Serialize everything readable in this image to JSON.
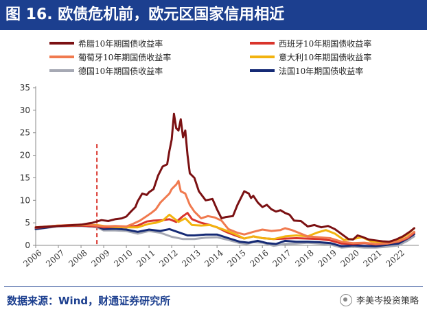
{
  "header": {
    "title": "图 16. 欧债危机前，欧元区国家信用相近"
  },
  "footer": {
    "source": "数据来源：Wind，财通证券研究所",
    "brand": "李美岑投资策略"
  },
  "chart_data": {
    "type": "line",
    "title": "图 16. 欧债危机前，欧元区国家信用相近",
    "xlabel": "",
    "ylabel": "",
    "xlim": [
      2006,
      2022.9
    ],
    "ylim": [
      0,
      35
    ],
    "yticks": [
      0,
      5,
      10,
      15,
      20,
      25,
      30,
      35
    ],
    "xticks": [
      "2006",
      "2007",
      "2008",
      "2009",
      "2010",
      "2011",
      "2012",
      "2013",
      "2014",
      "2015",
      "2016",
      "2017",
      "2018",
      "2019",
      "2020",
      "2021",
      "2022"
    ],
    "grid": false,
    "legend_position": "top",
    "annotations": [
      {
        "type": "vline",
        "x": 2008.7,
        "style": "dashed",
        "color": "#d9342b"
      }
    ],
    "series": [
      {
        "name": "希腊10年期国债收益率",
        "color": "#7b1113",
        "x": [
          2006,
          2007,
          2008,
          2008.5,
          2008.9,
          2009.2,
          2009.5,
          2009.8,
          2010.0,
          2010.2,
          2010.4,
          2010.5,
          2010.7,
          2010.9,
          2011.0,
          2011.2,
          2011.4,
          2011.6,
          2011.8,
          2011.9,
          2012.0,
          2012.1,
          2012.2,
          2012.3,
          2012.4,
          2012.5,
          2012.6,
          2012.7,
          2012.8,
          2013.0,
          2013.2,
          2013.5,
          2013.8,
          2014.0,
          2014.2,
          2014.4,
          2014.7,
          2014.9,
          2015.0,
          2015.2,
          2015.4,
          2015.5,
          2015.6,
          2015.8,
          2016.0,
          2016.2,
          2016.4,
          2016.6,
          2016.8,
          2017.0,
          2017.2,
          2017.4,
          2017.7,
          2018.0,
          2018.3,
          2018.6,
          2018.9,
          2019.2,
          2019.5,
          2019.8,
          2020.0,
          2020.2,
          2020.4,
          2020.7,
          2021.0,
          2021.3,
          2021.6,
          2021.9,
          2022.2,
          2022.5,
          2022.7
        ],
        "values": [
          4.0,
          4.3,
          4.6,
          5.0,
          5.6,
          5.4,
          5.8,
          6.0,
          6.4,
          7.5,
          8.5,
          9.8,
          11.5,
          11.2,
          11.8,
          12.5,
          15.5,
          17.5,
          18.0,
          21.0,
          23.5,
          29.2,
          26.0,
          25.5,
          28.0,
          24.0,
          25.5,
          20.0,
          16.0,
          15.0,
          12.0,
          10.0,
          10.3,
          8.0,
          6.0,
          6.3,
          6.5,
          9.0,
          10.0,
          12.0,
          11.5,
          10.5,
          11.0,
          9.5,
          8.5,
          9.0,
          8.0,
          7.5,
          7.8,
          7.2,
          6.8,
          5.5,
          5.4,
          4.2,
          4.5,
          4.0,
          4.3,
          3.6,
          2.5,
          1.4,
          1.3,
          2.2,
          1.9,
          1.3,
          1.1,
          0.9,
          0.8,
          1.3,
          2.0,
          3.0,
          3.8
        ]
      },
      {
        "name": "西班牙10年期国债收益率",
        "color": "#d9342b",
        "x": [
          2006,
          2007,
          2008,
          2008.7,
          2009.0,
          2009.5,
          2010.0,
          2010.5,
          2010.9,
          2011.2,
          2011.6,
          2011.9,
          2012.2,
          2012.5,
          2012.7,
          2012.9,
          2013.3,
          2013.7,
          2014.0,
          2014.4,
          2014.8,
          2015.2,
          2015.6,
          2016.0,
          2016.5,
          2017.0,
          2017.5,
          2018.0,
          2018.5,
          2019.0,
          2019.5,
          2020.0,
          2020.5,
          2021.0,
          2021.5,
          2022.0,
          2022.4,
          2022.7
        ],
        "values": [
          3.9,
          4.3,
          4.4,
          4.2,
          4.0,
          4.1,
          4.0,
          4.4,
          5.3,
          5.5,
          5.6,
          5.8,
          5.2,
          6.5,
          7.2,
          5.8,
          5.0,
          4.5,
          4.0,
          3.0,
          2.2,
          1.5,
          2.0,
          1.6,
          1.4,
          1.5,
          1.6,
          1.5,
          1.4,
          1.1,
          0.4,
          0.3,
          0.5,
          0.2,
          0.4,
          0.8,
          1.6,
          2.8
        ]
      },
      {
        "name": "葡萄牙10年期国债收益率",
        "color": "#f07a4f",
        "x": [
          2006,
          2007,
          2008,
          2008.7,
          2009.0,
          2009.5,
          2010.0,
          2010.3,
          2010.6,
          2010.9,
          2011.1,
          2011.3,
          2011.5,
          2011.7,
          2011.9,
          2012.0,
          2012.1,
          2012.2,
          2012.3,
          2012.4,
          2012.6,
          2012.8,
          2013.0,
          2013.3,
          2013.6,
          2013.9,
          2014.2,
          2014.5,
          2014.9,
          2015.2,
          2015.6,
          2016.0,
          2016.4,
          2016.8,
          2017.0,
          2017.3,
          2017.6,
          2018.0,
          2018.5,
          2019.0,
          2019.5,
          2020.0,
          2020.5,
          2021.0,
          2021.5,
          2022.0,
          2022.4,
          2022.7
        ],
        "values": [
          4.0,
          4.4,
          4.6,
          4.4,
          4.2,
          4.3,
          4.2,
          4.8,
          5.5,
          6.5,
          7.2,
          8.0,
          9.5,
          10.5,
          11.5,
          12.5,
          13.0,
          13.5,
          14.3,
          12.0,
          11.5,
          9.0,
          7.5,
          6.0,
          6.5,
          6.2,
          5.5,
          3.6,
          2.8,
          2.4,
          3.0,
          3.5,
          3.2,
          3.4,
          3.8,
          3.4,
          2.8,
          2.0,
          1.8,
          1.6,
          0.8,
          0.5,
          0.6,
          0.3,
          0.4,
          0.9,
          1.8,
          3.0
        ]
      },
      {
        "name": "意大利10年期国债收益率",
        "color": "#f2b30f",
        "x": [
          2006,
          2007,
          2008,
          2008.7,
          2009.0,
          2009.5,
          2010.0,
          2010.5,
          2011.0,
          2011.3,
          2011.6,
          2011.9,
          2012.1,
          2012.3,
          2012.6,
          2012.9,
          2013.3,
          2013.7,
          2014.0,
          2014.4,
          2014.8,
          2015.2,
          2015.6,
          2016.0,
          2016.5,
          2017.0,
          2017.5,
          2018.0,
          2018.4,
          2018.8,
          2019.2,
          2019.6,
          2020.0,
          2020.4,
          2020.8,
          2021.2,
          2021.6,
          2022.0,
          2022.4,
          2022.7
        ],
        "values": [
          4.0,
          4.4,
          4.5,
          4.5,
          4.3,
          4.1,
          4.0,
          4.0,
          4.8,
          5.0,
          5.5,
          6.8,
          6.0,
          5.2,
          6.0,
          4.5,
          4.4,
          4.5,
          4.0,
          3.3,
          2.5,
          1.5,
          2.0,
          1.6,
          1.4,
          2.0,
          2.2,
          2.0,
          2.8,
          3.4,
          2.6,
          1.2,
          1.4,
          1.8,
          0.9,
          0.7,
          0.8,
          1.3,
          2.4,
          3.8
        ]
      },
      {
        "name": "德国10年期国债收益率",
        "color": "#a6a9b4",
        "x": [
          2006,
          2007,
          2008,
          2008.7,
          2009.0,
          2009.5,
          2010.0,
          2010.5,
          2011.0,
          2011.5,
          2012.0,
          2012.5,
          2013.0,
          2013.5,
          2014.0,
          2014.5,
          2015.0,
          2015.3,
          2015.6,
          2016.0,
          2016.5,
          2017.0,
          2017.5,
          2018.0,
          2018.5,
          2019.0,
          2019.5,
          2020.0,
          2020.5,
          2021.0,
          2021.5,
          2022.0,
          2022.4,
          2022.7
        ],
        "values": [
          3.6,
          4.2,
          4.3,
          4.0,
          3.3,
          3.3,
          3.2,
          2.6,
          3.2,
          2.8,
          1.9,
          1.4,
          1.4,
          1.7,
          1.8,
          1.2,
          0.5,
          0.3,
          0.7,
          0.6,
          -0.1,
          0.3,
          0.4,
          0.6,
          0.4,
          0.2,
          -0.5,
          -0.3,
          -0.5,
          -0.5,
          -0.3,
          0.0,
          1.0,
          2.0
        ]
      },
      {
        "name": "法国10年期国债收益率",
        "color": "#152a75",
        "x": [
          2006,
          2007,
          2008,
          2008.7,
          2009.0,
          2009.5,
          2010.0,
          2010.5,
          2011.0,
          2011.5,
          2011.9,
          2012.3,
          2012.7,
          2013.0,
          2013.5,
          2014.0,
          2014.5,
          2015.0,
          2015.4,
          2015.8,
          2016.2,
          2016.6,
          2017.0,
          2017.5,
          2018.0,
          2018.5,
          2019.0,
          2019.5,
          2020.0,
          2020.5,
          2021.0,
          2021.5,
          2022.0,
          2022.4,
          2022.7
        ],
        "values": [
          3.6,
          4.3,
          4.4,
          4.2,
          3.6,
          3.7,
          3.5,
          3.0,
          3.5,
          3.2,
          3.6,
          2.9,
          2.2,
          2.2,
          2.4,
          2.4,
          1.6,
          0.8,
          0.6,
          1.0,
          0.5,
          0.3,
          1.0,
          0.8,
          0.8,
          0.7,
          0.5,
          -0.2,
          0.0,
          -0.1,
          -0.2,
          0.1,
          0.4,
          1.5,
          2.5
        ]
      }
    ]
  }
}
